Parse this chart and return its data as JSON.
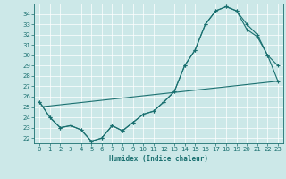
{
  "bg_color": "#cce8e8",
  "grid_color": "#ffffff",
  "line_color": "#1a7070",
  "xlabel": "Humidex (Indice chaleur)",
  "xlim": [
    -0.5,
    23.5
  ],
  "ylim": [
    21.5,
    35.0
  ],
  "xticks": [
    0,
    1,
    2,
    3,
    4,
    5,
    6,
    7,
    8,
    9,
    10,
    11,
    12,
    13,
    14,
    15,
    16,
    17,
    18,
    19,
    20,
    21,
    22,
    23
  ],
  "yticks": [
    22,
    23,
    24,
    25,
    26,
    27,
    28,
    29,
    30,
    31,
    32,
    33,
    34
  ],
  "line1_x": [
    0,
    1,
    2,
    3,
    4,
    5,
    6,
    7,
    8,
    9,
    10,
    11,
    12,
    13,
    14,
    15,
    16,
    17,
    18,
    19,
    20,
    21,
    22,
    23
  ],
  "line1_y": [
    25.5,
    24.0,
    23.0,
    23.2,
    22.8,
    21.7,
    22.0,
    23.2,
    22.7,
    23.5,
    24.3,
    24.6,
    25.5,
    26.5,
    29.0,
    30.5,
    33.0,
    34.3,
    34.7,
    34.3,
    33.0,
    32.0,
    30.0,
    29.0
  ],
  "line2_x": [
    0,
    1,
    2,
    3,
    4,
    5,
    6,
    7,
    8,
    9,
    10,
    11,
    12,
    13,
    14,
    15,
    16,
    17,
    18,
    19,
    20,
    21,
    22,
    23
  ],
  "line2_y": [
    25.5,
    24.0,
    23.0,
    23.2,
    22.8,
    21.7,
    22.0,
    23.2,
    22.7,
    23.5,
    24.3,
    24.6,
    25.5,
    26.5,
    29.0,
    30.5,
    33.0,
    34.3,
    34.7,
    34.3,
    32.5,
    31.8,
    30.0,
    27.5
  ],
  "line3_x": [
    0,
    23
  ],
  "line3_y": [
    25.0,
    27.5
  ]
}
